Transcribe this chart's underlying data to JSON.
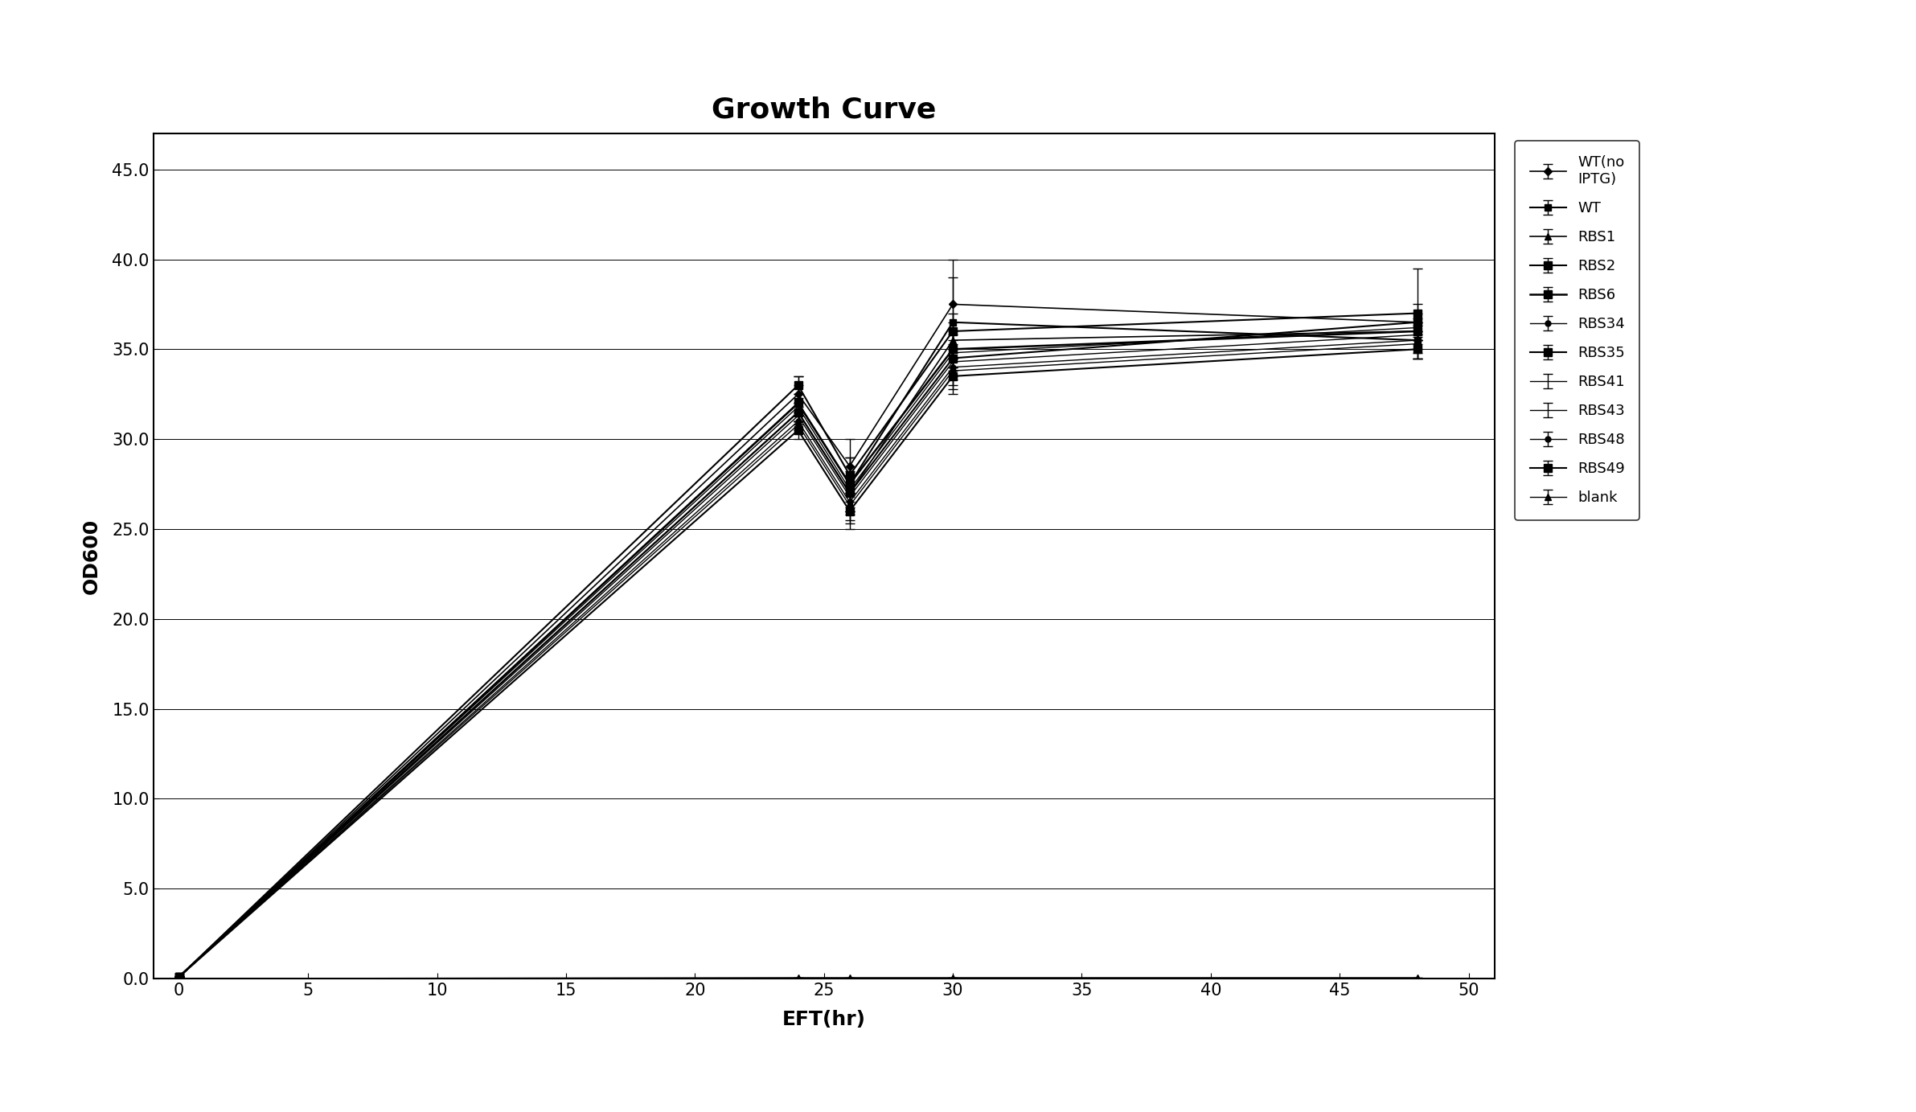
{
  "title": "Growth Curve",
  "xlabel": "EFT(hr)",
  "ylabel": "OD600",
  "xlim": [
    -1,
    51
  ],
  "ylim": [
    0.0,
    47.0
  ],
  "xticks": [
    0,
    5,
    10,
    15,
    20,
    25,
    30,
    35,
    40,
    45,
    50
  ],
  "yticks": [
    0.0,
    5.0,
    10.0,
    15.0,
    20.0,
    25.0,
    30.0,
    35.0,
    40.0,
    45.0
  ],
  "ytick_labels": [
    "0.0",
    "5.0",
    "10.0",
    "15.0",
    "20.0",
    "25.0",
    "30.0",
    "35.0",
    "40.0",
    "45.0"
  ],
  "series": [
    {
      "label": "WT(no\nIPTG)",
      "x": [
        0,
        24,
        26,
        30,
        48
      ],
      "y": [
        0.1,
        32.5,
        28.5,
        37.5,
        36.5
      ],
      "yerr": [
        0,
        1.0,
        1.5,
        2.5,
        1.0
      ],
      "marker": "D",
      "markersize": 5,
      "linewidth": 1.2
    },
    {
      "label": "WT",
      "x": [
        0,
        24,
        26,
        30,
        48
      ],
      "y": [
        0.1,
        32.0,
        27.5,
        36.5,
        35.5
      ],
      "yerr": [
        0,
        1.0,
        1.5,
        2.5,
        1.0
      ],
      "marker": "s",
      "markersize": 6,
      "linewidth": 1.5
    },
    {
      "label": "RBS1",
      "x": [
        0,
        24,
        26,
        30,
        48
      ],
      "y": [
        0.1,
        31.5,
        27.0,
        35.5,
        36.0
      ],
      "yerr": [
        0,
        0.5,
        1.0,
        1.0,
        0.5
      ],
      "marker": "^",
      "markersize": 6,
      "linewidth": 1.2
    },
    {
      "label": "RBS2",
      "x": [
        0,
        24,
        26,
        30,
        48
      ],
      "y": [
        0.1,
        33.0,
        28.0,
        36.0,
        37.0
      ],
      "yerr": [
        0,
        0.5,
        1.0,
        1.0,
        2.5
      ],
      "marker": "s",
      "markersize": 7,
      "linewidth": 1.5
    },
    {
      "label": "RBS6",
      "x": [
        0,
        24,
        26,
        30,
        48
      ],
      "y": [
        0.1,
        32.0,
        27.5,
        35.0,
        36.0
      ],
      "yerr": [
        0,
        0.5,
        1.0,
        1.0,
        0.5
      ],
      "marker": "s",
      "markersize": 7,
      "linewidth": 1.8
    },
    {
      "label": "RBS34",
      "x": [
        0,
        24,
        26,
        30,
        48
      ],
      "y": [
        0.1,
        31.0,
        26.5,
        34.0,
        35.5
      ],
      "yerr": [
        0,
        0.5,
        1.0,
        1.0,
        0.5
      ],
      "marker": "o",
      "markersize": 5,
      "linewidth": 1.0
    },
    {
      "label": "RBS35",
      "x": [
        0,
        24,
        26,
        30,
        48
      ],
      "y": [
        0.1,
        30.5,
        26.0,
        33.5,
        35.0
      ],
      "yerr": [
        0,
        0.5,
        1.0,
        1.0,
        0.5
      ],
      "marker": "s",
      "markersize": 7,
      "linewidth": 1.5
    },
    {
      "label": "RBS41",
      "x": [
        0,
        24,
        26,
        30,
        48
      ],
      "y": [
        0.1,
        31.8,
        27.2,
        34.8,
        36.2
      ],
      "yerr": [
        0,
        0.5,
        1.0,
        1.0,
        0.5
      ],
      "marker": "",
      "markersize": 5,
      "linewidth": 1.0
    },
    {
      "label": "RBS43",
      "x": [
        0,
        24,
        26,
        30,
        48
      ],
      "y": [
        0.1,
        31.3,
        26.8,
        34.3,
        35.8
      ],
      "yerr": [
        0,
        0.5,
        1.0,
        1.0,
        0.5
      ],
      "marker": "",
      "markersize": 5,
      "linewidth": 1.0
    },
    {
      "label": "RBS48",
      "x": [
        0,
        24,
        26,
        30,
        48
      ],
      "y": [
        0.1,
        30.8,
        26.3,
        33.8,
        35.3
      ],
      "yerr": [
        0,
        0.5,
        1.0,
        1.0,
        0.5
      ],
      "marker": "o",
      "markersize": 5,
      "linewidth": 1.0
    },
    {
      "label": "RBS49",
      "x": [
        0,
        24,
        26,
        30,
        48
      ],
      "y": [
        0.1,
        31.5,
        27.0,
        34.5,
        36.5
      ],
      "yerr": [
        0,
        0.5,
        1.0,
        1.0,
        0.5
      ],
      "marker": "s",
      "markersize": 7,
      "linewidth": 1.5
    },
    {
      "label": "blank",
      "x": [
        0,
        24,
        26,
        30,
        48
      ],
      "y": [
        0.0,
        0.05,
        0.05,
        0.05,
        0.05
      ],
      "yerr": [
        0,
        0,
        0,
        0,
        0
      ],
      "marker": "^",
      "markersize": 6,
      "linewidth": 1.0
    }
  ],
  "background_color": "#ffffff",
  "color": "#000000",
  "title_fontsize": 26,
  "axis_label_fontsize": 18,
  "tick_fontsize": 15,
  "legend_fontsize": 13
}
